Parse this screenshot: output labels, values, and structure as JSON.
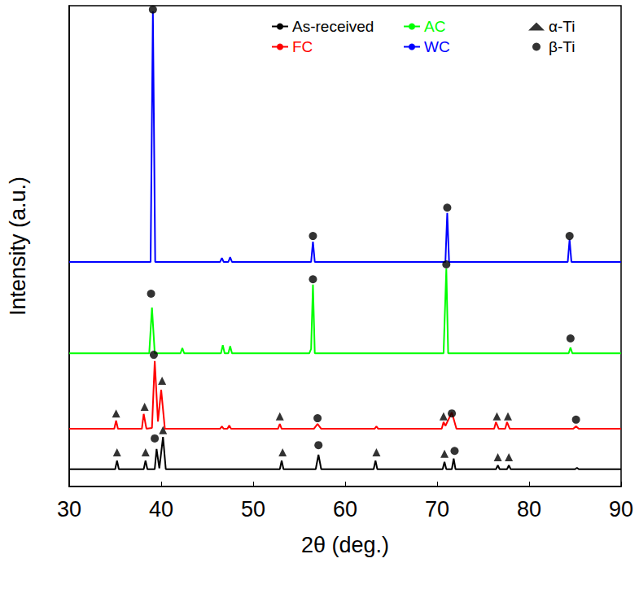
{
  "chart_data": {
    "type": "line",
    "xlabel": "2θ (deg.)",
    "ylabel": "Intensity (a.u.)",
    "xlim": [
      30,
      90
    ],
    "xticks": [
      30,
      40,
      50,
      60,
      70,
      80,
      90
    ],
    "ylim": [
      0,
      100
    ],
    "tick_labels": "x",
    "grid": false,
    "legend": "top",
    "series": [
      {
        "name": "As-received",
        "color": "#000000",
        "type": "line",
        "line_style": "solid",
        "x": [
          30,
          35.0,
          35.2,
          35.4,
          38.1,
          38.3,
          38.5,
          39.3,
          39.5,
          39.8,
          40.2,
          40.5,
          52.9,
          53.1,
          53.3,
          56.8,
          57.1,
          57.4,
          63.1,
          63.3,
          63.5,
          70.6,
          70.8,
          71.0,
          71.6,
          71.8,
          72.0,
          76.4,
          76.6,
          76.8,
          77.6,
          77.8,
          78.0,
          85.0,
          85.2,
          85.4,
          90
        ],
        "values": [
          3.6,
          3.6,
          5.4,
          3.6,
          3.6,
          5.4,
          3.6,
          3.6,
          7.8,
          3.8,
          10.3,
          3.6,
          3.6,
          5.4,
          3.6,
          3.6,
          6.6,
          3.6,
          3.6,
          5.4,
          3.6,
          3.6,
          5.1,
          3.6,
          3.6,
          5.8,
          3.6,
          3.6,
          4.4,
          3.6,
          3.6,
          4.4,
          3.6,
          3.6,
          3.9,
          3.6,
          3.6
        ]
      },
      {
        "name": "FC",
        "color": "#ff0000",
        "type": "line",
        "line_style": "solid",
        "x": [
          30,
          34.9,
          35.1,
          35.3,
          37.9,
          38.1,
          38.4,
          39.0,
          39.3,
          39.65,
          40.0,
          40.4,
          46.4,
          46.6,
          46.8,
          47.2,
          47.4,
          47.6,
          52.7,
          52.9,
          53.1,
          56.6,
          57.0,
          57.4,
          63.2,
          63.4,
          63.6,
          70.5,
          70.7,
          70.9,
          71.6,
          72.1,
          76.2,
          76.4,
          76.7,
          77.4,
          77.6,
          77.9,
          84.8,
          85.1,
          85.4,
          90
        ],
        "values": [
          12.0,
          12.0,
          13.7,
          12.0,
          12.0,
          15.1,
          12.0,
          12.2,
          26.1,
          13.5,
          20.1,
          12.0,
          12.0,
          12.5,
          12.0,
          12.0,
          12.7,
          12.0,
          12.0,
          13.0,
          12.0,
          12.0,
          13.0,
          12.0,
          12.0,
          12.5,
          12.0,
          12.0,
          13.4,
          12.6,
          15.4,
          12.0,
          12.0,
          13.4,
          12.0,
          12.0,
          13.4,
          12.0,
          12.0,
          12.5,
          12.0,
          12.0
        ]
      },
      {
        "name": "AC",
        "color": "#00ff00",
        "type": "line",
        "line_style": "solid",
        "x": [
          30,
          38.7,
          39.0,
          39.3,
          42.1,
          42.3,
          42.5,
          46.5,
          46.7,
          46.9,
          47.3,
          47.5,
          47.7,
          56.1,
          56.3,
          56.5,
          56.7,
          70.7,
          71.0,
          71.2,
          84.3,
          84.5,
          84.7,
          90
        ],
        "values": [
          27.7,
          27.7,
          37.2,
          27.7,
          27.7,
          28.8,
          27.7,
          27.7,
          29.4,
          27.7,
          27.7,
          29.2,
          27.7,
          27.7,
          28.6,
          42.0,
          27.7,
          27.7,
          45.3,
          27.7,
          27.7,
          28.9,
          27.7,
          27.7
        ]
      },
      {
        "name": "WC",
        "color": "#0000ff",
        "type": "line",
        "line_style": "solid",
        "x": [
          30,
          38.85,
          39.1,
          39.35,
          46.4,
          46.6,
          46.8,
          47.3,
          47.5,
          47.7,
          56.3,
          56.5,
          56.7,
          70.9,
          71.1,
          71.3,
          84.2,
          84.4,
          84.6,
          90
        ],
        "values": [
          46.7,
          46.7,
          98.8,
          46.7,
          46.7,
          47.5,
          46.7,
          46.7,
          47.7,
          46.7,
          46.7,
          50.9,
          46.7,
          46.7,
          56.9,
          46.7,
          46.7,
          51.4,
          46.7,
          46.7
        ]
      },
      {
        "name": "α-Ti",
        "color": "#000000",
        "type": "scatter",
        "marker": "triangle",
        "x": [
          35.2,
          38.3,
          40.2,
          53.2,
          63.4,
          70.8,
          76.6,
          77.8,
          35.1,
          38.2,
          40.1,
          52.9,
          70.7,
          76.5,
          77.7
        ],
        "values": [
          7.1,
          7.1,
          11.7,
          7.1,
          7.1,
          6.8,
          6.1,
          6.1,
          15.2,
          16.6,
          22.0,
          14.6,
          14.6,
          14.6,
          14.6
        ]
      },
      {
        "name": "β-Ti",
        "color": "#000000",
        "type": "scatter",
        "marker": "circle",
        "x": [
          39.3,
          57.1,
          71.9,
          39.2,
          57.0,
          71.6,
          85.1,
          38.9,
          56.5,
          71.0,
          84.5,
          39.1,
          56.5,
          71.1,
          84.4
        ],
        "values": [
          10.0,
          8.6,
          7.4,
          27.4,
          14.2,
          15.2,
          13.9,
          40.1,
          43.1,
          46.2,
          30.8,
          99.2,
          52.1,
          58.0,
          52.1
        ]
      }
    ]
  }
}
